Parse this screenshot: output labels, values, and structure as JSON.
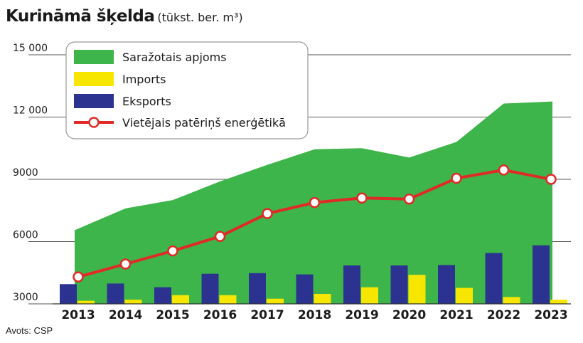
{
  "title": "Kurināmā šķelda",
  "unit": "(tūkst. ber. m³)",
  "source": "Avots: CSP",
  "chart_data": {
    "type": "area",
    "categories": [
      "2013",
      "2014",
      "2015",
      "2016",
      "2017",
      "2018",
      "2019",
      "2020",
      "2021",
      "2022",
      "2023"
    ],
    "ylim": [
      3000,
      15000
    ],
    "yticks": [
      3000,
      6000,
      9000,
      12000,
      15000
    ],
    "ytick_labels": [
      "3000",
      "6000",
      "9000",
      "12 000",
      "15 000"
    ],
    "grid": true,
    "legend_position": "top-left",
    "series": [
      {
        "name": "Saražotais apjoms",
        "kind": "area",
        "color": "#3db54a",
        "values": [
          6550,
          7600,
          8000,
          8900,
          9700,
          10450,
          10500,
          10050,
          10800,
          12650,
          12750
        ]
      },
      {
        "name": "Imports",
        "kind": "bar",
        "color": "#f7e600",
        "values": [
          3150,
          3200,
          3420,
          3420,
          3250,
          3480,
          3800,
          4400,
          3770,
          3330,
          3200
        ]
      },
      {
        "name": "Eksports",
        "kind": "bar",
        "color": "#2b3290",
        "values": [
          3950,
          3980,
          3800,
          4450,
          4480,
          4420,
          4850,
          4850,
          4870,
          5450,
          5820
        ]
      },
      {
        "name": "Vietējais patēriņš enerģētikā",
        "kind": "line",
        "color": "#e02a26",
        "values": [
          4300,
          4920,
          5550,
          6250,
          7350,
          7880,
          8100,
          8050,
          9050,
          9450,
          9000
        ]
      }
    ]
  }
}
